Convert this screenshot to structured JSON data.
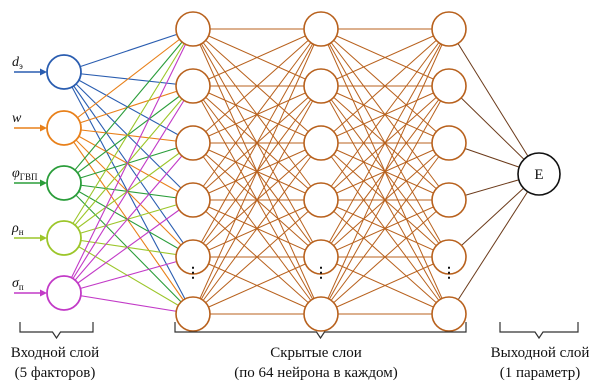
{
  "inputs": [
    {
      "symbol": "d",
      "sub": "э",
      "color": "#2a5db0"
    },
    {
      "symbol": "w",
      "sub": "",
      "color": "#e8801a"
    },
    {
      "symbol": "φ",
      "sub": "ГВП",
      "color": "#2a9d3a"
    },
    {
      "symbol": "ρ",
      "sub": "н",
      "color": "#9cc62a"
    },
    {
      "symbol": "σ",
      "sub": "п",
      "color": "#c23ac7"
    }
  ],
  "hidden_color": "#b8611d",
  "output": {
    "label": "E"
  },
  "ellipsis": "⋮",
  "captions": {
    "input": [
      "Входной слой",
      "(5 факторов)"
    ],
    "hidden": [
      "Скрытые слои",
      "(по 64 нейрона в каждом)"
    ],
    "output": [
      "Выходной слой",
      "(1 параметр)"
    ]
  }
}
